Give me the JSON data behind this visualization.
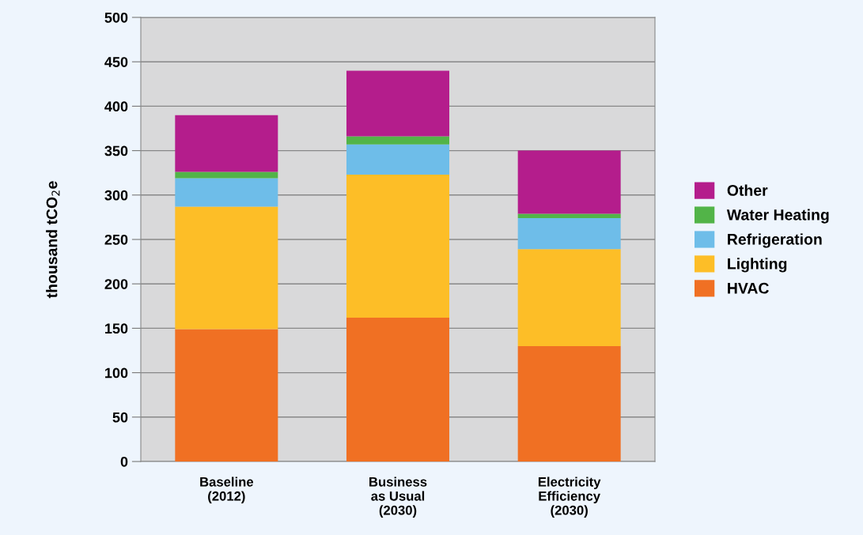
{
  "chart_data": {
    "type": "bar",
    "stacked": true,
    "ylabel": "thousand tCO$_{2}$e",
    "categories": [
      "Baseline\n(2012)",
      "Business\nas Usual\n(2030)",
      "Electricity\nEfficiency\n(2030)"
    ],
    "series": [
      {
        "name": "HVAC",
        "color": "#f07023",
        "values": [
          149,
          162,
          130
        ]
      },
      {
        "name": "Lighting",
        "color": "#fdbe27",
        "values": [
          138,
          161,
          109
        ]
      },
      {
        "name": "Refrigeration",
        "color": "#6ebde9",
        "values": [
          32,
          34,
          35
        ]
      },
      {
        "name": "Water Heating",
        "color": "#52b448",
        "values": [
          7,
          9,
          5
        ]
      },
      {
        "name": "Other",
        "color": "#b41d8c",
        "values": [
          64,
          74,
          71
        ]
      }
    ],
    "ylim": [
      0,
      500
    ],
    "yticks": [
      0,
      50,
      100,
      150,
      200,
      250,
      300,
      350,
      400,
      450,
      500
    ],
    "grid": "y",
    "legend": "right"
  }
}
